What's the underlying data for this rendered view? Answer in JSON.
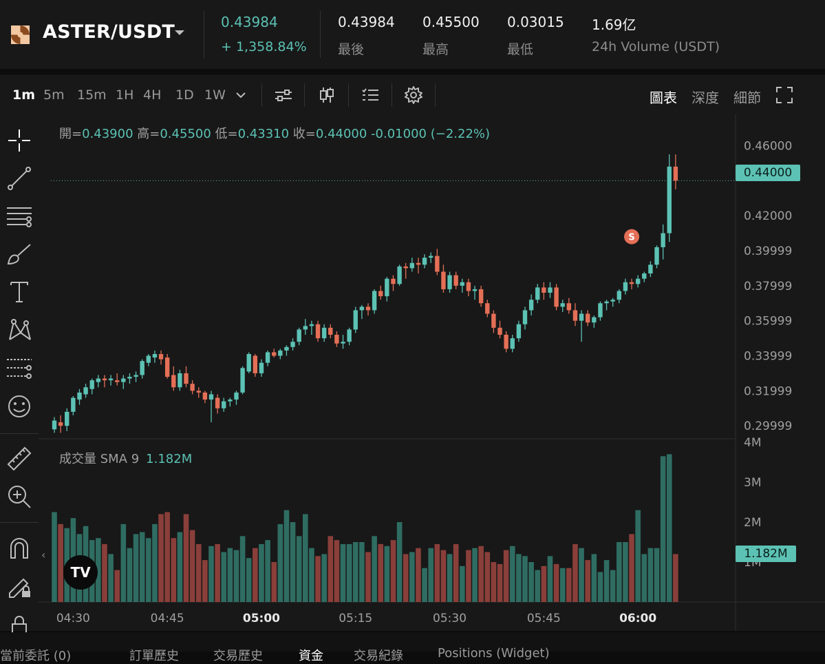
{
  "header": {
    "pair": "ASTER/USDT",
    "price": "0.43984",
    "change": "+ 1,358.84%",
    "stats": [
      {
        "value": "0.43984",
        "label": "最後"
      },
      {
        "value": "0.45500",
        "label": "最高"
      },
      {
        "value": "0.03015",
        "label": "最低"
      },
      {
        "value": "1.69亿",
        "label": "24h Volume (USDT)"
      }
    ]
  },
  "toolbar": {
    "timeframes": [
      "1m",
      "5m",
      "15m",
      "1H",
      "4H",
      "1D",
      "1W"
    ],
    "active_timeframe": "1m",
    "view_tabs": [
      "圖表",
      "深度",
      "細節"
    ],
    "active_view": "圖表",
    "icons": [
      "chevron-down-icon",
      "indicators-icon",
      "candle-type-icon",
      "list-settings-icon",
      "gear-icon",
      "fullscreen-icon"
    ]
  },
  "left_tools": [
    "crosshair-icon",
    "trendline-icon",
    "fib-lines-icon",
    "brush-icon",
    "text-icon",
    "pattern-icon",
    "prediction-icon",
    "emoji-icon",
    "ruler-icon",
    "zoom-in-icon",
    "magnet-icon",
    "lock-drawing-icon",
    "lock-icon"
  ],
  "ohlc": {
    "open_label": "開=",
    "open": "0.43900",
    "high_label": "高=",
    "high": "0.45500",
    "low_label": "低=",
    "low": "0.43310",
    "close_label": "收=",
    "close": "0.44000",
    "change": "-0.01000 (−2.22%)"
  },
  "volume_indicator": {
    "label": "成交量 SMA 9",
    "value": "1.182M"
  },
  "current_price_tag": "0.44000",
  "current_volume_tag": "1.182M",
  "signal_marker": "S",
  "tv_logo": "TV",
  "collapse_arrow": "‹",
  "chart_data": {
    "type": "candlestick",
    "price_axis": {
      "ticks": [
        "0.46000",
        "0.42000",
        "0.39999",
        "0.37999",
        "0.35999",
        "0.33999",
        "0.31999",
        "0.29999"
      ],
      "tick_values": [
        0.46,
        0.42,
        0.39999,
        0.37999,
        0.35999,
        0.33999,
        0.31999,
        0.29999
      ],
      "range": [
        0.293,
        0.47
      ]
    },
    "volume_axis": {
      "ticks": [
        "4M",
        "3M",
        "2M",
        "1M"
      ],
      "tick_values": [
        4,
        3,
        2,
        1
      ],
      "unit": "M",
      "range": [
        0,
        4
      ]
    },
    "time_axis": {
      "ticks": [
        "04:30",
        "04:45",
        "05:00",
        "05:15",
        "05:30",
        "05:45",
        "06:00"
      ],
      "bold": [
        "05:00",
        "06:00"
      ],
      "start_minute": 267,
      "bars": 100
    },
    "candles_note": "open, high, low, close, volume(M) per 1-minute bar, estimated",
    "candles": [
      [
        0.298,
        0.305,
        0.296,
        0.303,
        2.25
      ],
      [
        0.302,
        0.306,
        0.296,
        0.3,
        1.95
      ],
      [
        0.3,
        0.31,
        0.297,
        0.308,
        1.85
      ],
      [
        0.308,
        0.317,
        0.306,
        0.316,
        2.1
      ],
      [
        0.315,
        0.321,
        0.312,
        0.319,
        1.7
      ],
      [
        0.318,
        0.324,
        0.316,
        0.322,
        1.9
      ],
      [
        0.321,
        0.327,
        0.318,
        0.326,
        1.55
      ],
      [
        0.325,
        0.329,
        0.322,
        0.327,
        1.6
      ],
      [
        0.327,
        0.329,
        0.322,
        0.326,
        1.45
      ],
      [
        0.326,
        0.329,
        0.323,
        0.327,
        1.2
      ],
      [
        0.326,
        0.33,
        0.323,
        0.325,
        0.8
      ],
      [
        0.325,
        0.329,
        0.321,
        0.327,
        1.95
      ],
      [
        0.327,
        0.33,
        0.324,
        0.328,
        1.35
      ],
      [
        0.328,
        0.331,
        0.325,
        0.329,
        1.7
      ],
      [
        0.329,
        0.338,
        0.327,
        0.337,
        1.75
      ],
      [
        0.336,
        0.341,
        0.334,
        0.34,
        1.6
      ],
      [
        0.339,
        0.343,
        0.336,
        0.341,
        1.95
      ],
      [
        0.341,
        0.343,
        0.335,
        0.338,
        2.2
      ],
      [
        0.339,
        0.341,
        0.327,
        0.328,
        2.25
      ],
      [
        0.329,
        0.334,
        0.32,
        0.322,
        1.6
      ],
      [
        0.322,
        0.332,
        0.32,
        0.33,
        1.75
      ],
      [
        0.33,
        0.334,
        0.322,
        0.324,
        2.2
      ],
      [
        0.324,
        0.326,
        0.318,
        0.32,
        1.8
      ],
      [
        0.32,
        0.322,
        0.316,
        0.319,
        1.45
      ],
      [
        0.319,
        0.32,
        0.313,
        0.315,
        1.05
      ],
      [
        0.315,
        0.32,
        0.302,
        0.318,
        1.4
      ],
      [
        0.316,
        0.318,
        0.307,
        0.31,
        1.45
      ],
      [
        0.31,
        0.316,
        0.308,
        0.314,
        1.25
      ],
      [
        0.314,
        0.316,
        0.311,
        0.315,
        1.35
      ],
      [
        0.315,
        0.32,
        0.312,
        0.319,
        1.3
      ],
      [
        0.319,
        0.334,
        0.318,
        0.333,
        1.65
      ],
      [
        0.331,
        0.342,
        0.33,
        0.341,
        1.1
      ],
      [
        0.34,
        0.341,
        0.328,
        0.33,
        1.35
      ],
      [
        0.33,
        0.338,
        0.328,
        0.336,
        1.45
      ],
      [
        0.336,
        0.343,
        0.334,
        0.342,
        1.55
      ],
      [
        0.342,
        0.344,
        0.339,
        0.34,
        1.0
      ],
      [
        0.34,
        0.344,
        0.338,
        0.343,
        1.95
      ],
      [
        0.343,
        0.346,
        0.34,
        0.345,
        2.3
      ],
      [
        0.345,
        0.35,
        0.343,
        0.348,
        2.0
      ],
      [
        0.348,
        0.356,
        0.346,
        0.355,
        1.65
      ],
      [
        0.355,
        0.361,
        0.352,
        0.357,
        2.2
      ],
      [
        0.357,
        0.36,
        0.352,
        0.358,
        1.35
      ],
      [
        0.358,
        0.36,
        0.348,
        0.35,
        1.15
      ],
      [
        0.35,
        0.358,
        0.348,
        0.356,
        1.2
      ],
      [
        0.356,
        0.358,
        0.35,
        0.352,
        1.65
      ],
      [
        0.352,
        0.354,
        0.345,
        0.347,
        1.55
      ],
      [
        0.347,
        0.352,
        0.344,
        0.348,
        1.45
      ],
      [
        0.348,
        0.356,
        0.346,
        0.355,
        1.45
      ],
      [
        0.355,
        0.368,
        0.353,
        0.366,
        1.5
      ],
      [
        0.366,
        0.369,
        0.361,
        0.368,
        1.5
      ],
      [
        0.368,
        0.37,
        0.363,
        0.366,
        1.25
      ],
      [
        0.366,
        0.378,
        0.364,
        0.377,
        1.65
      ],
      [
        0.377,
        0.38,
        0.372,
        0.374,
        1.45
      ],
      [
        0.374,
        0.385,
        0.371,
        0.384,
        1.4
      ],
      [
        0.384,
        0.386,
        0.377,
        0.381,
        1.55
      ],
      [
        0.381,
        0.392,
        0.38,
        0.391,
        2.0
      ],
      [
        0.391,
        0.393,
        0.384,
        0.39,
        1.2
      ],
      [
        0.39,
        0.396,
        0.388,
        0.393,
        1.25
      ],
      [
        0.393,
        0.396,
        0.387,
        0.392,
        1.35
      ],
      [
        0.392,
        0.398,
        0.39,
        0.396,
        0.85
      ],
      [
        0.396,
        0.399,
        0.393,
        0.397,
        1.35
      ],
      [
        0.397,
        0.401,
        0.386,
        0.388,
        1.45
      ],
      [
        0.388,
        0.392,
        0.376,
        0.378,
        1.3
      ],
      [
        0.378,
        0.388,
        0.376,
        0.386,
        1.2
      ],
      [
        0.386,
        0.388,
        0.378,
        0.38,
        1.45
      ],
      [
        0.38,
        0.384,
        0.376,
        0.382,
        0.9
      ],
      [
        0.382,
        0.384,
        0.374,
        0.377,
        1.3
      ],
      [
        0.377,
        0.38,
        0.372,
        0.378,
        1.35
      ],
      [
        0.378,
        0.38,
        0.368,
        0.37,
        1.4
      ],
      [
        0.37,
        0.372,
        0.362,
        0.364,
        1.25
      ],
      [
        0.364,
        0.366,
        0.353,
        0.356,
        1.0
      ],
      [
        0.356,
        0.36,
        0.35,
        0.352,
        0.95
      ],
      [
        0.352,
        0.354,
        0.342,
        0.344,
        1.3
      ],
      [
        0.344,
        0.352,
        0.342,
        0.35,
        1.4
      ],
      [
        0.35,
        0.36,
        0.348,
        0.358,
        1.2
      ],
      [
        0.358,
        0.368,
        0.355,
        0.366,
        1.15
      ],
      [
        0.366,
        0.375,
        0.363,
        0.372,
        1.0
      ],
      [
        0.372,
        0.381,
        0.37,
        0.379,
        0.8
      ],
      [
        0.379,
        0.382,
        0.372,
        0.376,
        0.9
      ],
      [
        0.376,
        0.382,
        0.373,
        0.379,
        1.15
      ],
      [
        0.379,
        0.381,
        0.366,
        0.368,
        0.95
      ],
      [
        0.368,
        0.372,
        0.365,
        0.37,
        0.85
      ],
      [
        0.37,
        0.373,
        0.364,
        0.366,
        0.85
      ],
      [
        0.366,
        0.37,
        0.357,
        0.36,
        1.45
      ],
      [
        0.36,
        0.366,
        0.348,
        0.364,
        1.35
      ],
      [
        0.364,
        0.366,
        0.357,
        0.359,
        1.05
      ],
      [
        0.359,
        0.363,
        0.356,
        0.362,
        1.2
      ],
      [
        0.362,
        0.371,
        0.36,
        0.37,
        0.75
      ],
      [
        0.37,
        0.372,
        0.366,
        0.371,
        1.05
      ],
      [
        0.371,
        0.373,
        0.368,
        0.372,
        0.8
      ],
      [
        0.372,
        0.378,
        0.37,
        0.377,
        1.5
      ],
      [
        0.377,
        0.384,
        0.375,
        0.382,
        1.5
      ],
      [
        0.382,
        0.384,
        0.378,
        0.381,
        1.7
      ],
      [
        0.381,
        0.386,
        0.379,
        0.384,
        2.3
      ],
      [
        0.384,
        0.388,
        0.382,
        0.387,
        1.2
      ],
      [
        0.387,
        0.394,
        0.385,
        0.392,
        1.35
      ],
      [
        0.392,
        0.403,
        0.39,
        0.402,
        1.35
      ],
      [
        0.402,
        0.415,
        0.395,
        0.41,
        3.65
      ],
      [
        0.41,
        0.455,
        0.405,
        0.448,
        3.7
      ],
      [
        0.448,
        0.455,
        0.435,
        0.44,
        1.2
      ]
    ]
  },
  "bottom_tabs": [
    "當前委託 (0)",
    "訂單歷史",
    "交易歷史",
    "資金",
    "交易紀錄",
    "Positions (Widget)"
  ],
  "active_bottom_tab": "資金",
  "colors": {
    "up": "#5cc2b4",
    "down": "#e46f57",
    "vol_up": "#2f6d62",
    "vol_down": "#8a3f3a",
    "bg": "#181818"
  }
}
